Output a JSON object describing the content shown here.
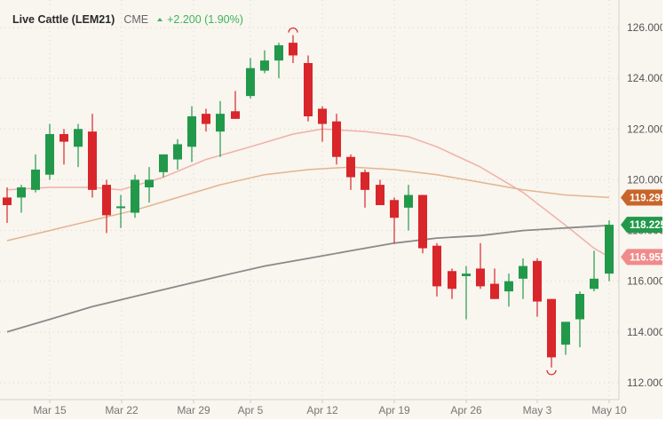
{
  "header": {
    "title": "Live Cattle (LEM21)",
    "exchange": "CME",
    "change_icon": "triangle-up-icon",
    "change": "+2.200 (1.90%)"
  },
  "colors": {
    "background": "#f9f5ef",
    "up": "#22994a",
    "down": "#d8262b",
    "ma_short": "#f0b0a8",
    "ma_mid": "#e2b590",
    "ma_long": "#8a8a8a",
    "tag_mid": "#c8652a",
    "tag_price": "#22994a",
    "tag_short": "#f08b8b",
    "positive_text": "#3cb55a"
  },
  "y_axis": {
    "labels": [
      "126.000",
      "124.000",
      "122.000",
      "120.000",
      "118.000",
      "116.000",
      "114.000",
      "112.000"
    ]
  },
  "x_axis": {
    "labels": [
      "Mar 15",
      "Mar 22",
      "Mar 29",
      "Apr 5",
      "Apr 12",
      "Apr 19",
      "Apr 26",
      "May 3",
      "May 10"
    ]
  },
  "price_tags": [
    {
      "name": "ma-mid-tag",
      "value": "119.299",
      "color": "#c8652a"
    },
    {
      "name": "last-price-tag",
      "value": "118.225",
      "color": "#22994a"
    },
    {
      "name": "ma-short-tag",
      "value": "116.955",
      "color": "#f08b8b"
    }
  ],
  "chart_data": {
    "type": "candlestick",
    "title": "Live Cattle (LEM21)",
    "xlabel": "",
    "ylabel": "",
    "ylim": [
      111.5,
      126.4
    ],
    "grid": true,
    "x_tick_labels": [
      "Mar 15",
      "Mar 22",
      "Mar 29",
      "Apr 5",
      "Apr 12",
      "Apr 19",
      "Apr 26",
      "May 3",
      "May 10"
    ],
    "y_tick_labels": [
      "112.000",
      "114.000",
      "116.000",
      "118.000",
      "120.000",
      "122.000",
      "124.000",
      "126.000"
    ],
    "candles": [
      {
        "x": 8,
        "o": 119.3,
        "h": 119.7,
        "l": 118.3,
        "c": 119.0
      },
      {
        "x": 24,
        "o": 119.3,
        "h": 119.8,
        "l": 118.7,
        "c": 119.7
      },
      {
        "x": 40,
        "o": 119.6,
        "h": 121.0,
        "l": 119.5,
        "c": 120.4
      },
      {
        "x": 56,
        "o": 120.2,
        "h": 122.2,
        "l": 120.0,
        "c": 121.8
      },
      {
        "x": 72,
        "o": 121.8,
        "h": 122.0,
        "l": 120.6,
        "c": 121.5
      },
      {
        "x": 88,
        "o": 121.3,
        "h": 122.2,
        "l": 120.5,
        "c": 122.0
      },
      {
        "x": 104,
        "o": 121.9,
        "h": 122.6,
        "l": 119.3,
        "c": 119.6
      },
      {
        "x": 120,
        "o": 119.8,
        "h": 120.0,
        "l": 117.9,
        "c": 118.6
      },
      {
        "x": 136,
        "o": 118.9,
        "h": 119.4,
        "l": 118.1,
        "c": 118.95
      },
      {
        "x": 152,
        "o": 118.7,
        "h": 120.2,
        "l": 118.5,
        "c": 120.0
      },
      {
        "x": 168,
        "o": 119.7,
        "h": 120.5,
        "l": 119.1,
        "c": 120.0
      },
      {
        "x": 184,
        "o": 120.3,
        "h": 121.0,
        "l": 120.1,
        "c": 121.0
      },
      {
        "x": 200,
        "o": 120.8,
        "h": 121.6,
        "l": 120.4,
        "c": 121.4
      },
      {
        "x": 216,
        "o": 121.3,
        "h": 122.9,
        "l": 120.7,
        "c": 122.5
      },
      {
        "x": 232,
        "o": 122.6,
        "h": 122.8,
        "l": 121.9,
        "c": 122.2
      },
      {
        "x": 248,
        "o": 121.9,
        "h": 123.1,
        "l": 120.9,
        "c": 122.6
      },
      {
        "x": 265,
        "o": 122.7,
        "h": 123.5,
        "l": 122.4,
        "c": 122.4
      },
      {
        "x": 282,
        "o": 123.3,
        "h": 124.8,
        "l": 123.2,
        "c": 124.4
      },
      {
        "x": 298,
        "o": 124.3,
        "h": 125.1,
        "l": 124.2,
        "c": 124.7
      },
      {
        "x": 314,
        "o": 124.7,
        "h": 125.4,
        "l": 124.0,
        "c": 125.3
      },
      {
        "x": 330,
        "o": 125.4,
        "h": 125.7,
        "l": 124.6,
        "c": 124.9
      },
      {
        "x": 347,
        "o": 124.6,
        "h": 124.9,
        "l": 122.3,
        "c": 122.5
      },
      {
        "x": 363,
        "o": 122.8,
        "h": 122.9,
        "l": 121.5,
        "c": 122.2
      },
      {
        "x": 379,
        "o": 122.3,
        "h": 122.6,
        "l": 120.6,
        "c": 120.9
      },
      {
        "x": 395,
        "o": 120.9,
        "h": 121.0,
        "l": 119.6,
        "c": 120.1
      },
      {
        "x": 411,
        "o": 120.3,
        "h": 120.4,
        "l": 118.9,
        "c": 119.6
      },
      {
        "x": 428,
        "o": 119.8,
        "h": 120.0,
        "l": 119.0,
        "c": 119.0
      },
      {
        "x": 444,
        "o": 119.2,
        "h": 119.3,
        "l": 117.5,
        "c": 118.5
      },
      {
        "x": 460,
        "o": 118.9,
        "h": 119.8,
        "l": 118.0,
        "c": 119.4
      },
      {
        "x": 476,
        "o": 119.4,
        "h": 119.4,
        "l": 117.1,
        "c": 117.3
      },
      {
        "x": 492,
        "o": 117.4,
        "h": 117.5,
        "l": 115.4,
        "c": 115.8
      },
      {
        "x": 509,
        "o": 116.4,
        "h": 116.5,
        "l": 115.3,
        "c": 115.7
      },
      {
        "x": 525,
        "o": 116.2,
        "h": 116.6,
        "l": 114.5,
        "c": 116.3
      },
      {
        "x": 541,
        "o": 116.5,
        "h": 117.5,
        "l": 115.7,
        "c": 115.8
      },
      {
        "x": 557,
        "o": 115.9,
        "h": 116.5,
        "l": 115.3,
        "c": 115.3
      },
      {
        "x": 573,
        "o": 115.6,
        "h": 116.3,
        "l": 115.0,
        "c": 116.0
      },
      {
        "x": 589,
        "o": 116.1,
        "h": 116.9,
        "l": 115.3,
        "c": 116.6
      },
      {
        "x": 605,
        "o": 116.8,
        "h": 116.9,
        "l": 114.6,
        "c": 115.2
      },
      {
        "x": 621,
        "o": 115.3,
        "h": 115.3,
        "l": 112.6,
        "c": 113.0
      },
      {
        "x": 637,
        "o": 113.5,
        "h": 114.4,
        "l": 113.1,
        "c": 114.4
      },
      {
        "x": 653,
        "o": 114.5,
        "h": 115.6,
        "l": 113.4,
        "c": 115.5
      },
      {
        "x": 669,
        "o": 115.7,
        "h": 117.2,
        "l": 115.6,
        "c": 116.1
      },
      {
        "x": 686,
        "o": 116.3,
        "h": 118.4,
        "l": 116.0,
        "c": 118.225
      }
    ],
    "series": [
      {
        "name": "MA short",
        "color": "#f0b0a8",
        "last": 116.955,
        "points": [
          [
            8,
            119.6
          ],
          [
            56,
            119.7
          ],
          [
            104,
            119.7
          ],
          [
            136,
            119.6
          ],
          [
            184,
            120.1
          ],
          [
            232,
            120.8
          ],
          [
            282,
            121.3
          ],
          [
            330,
            121.8
          ],
          [
            363,
            122.0
          ],
          [
            411,
            121.9
          ],
          [
            460,
            121.7
          ],
          [
            492,
            121.3
          ],
          [
            541,
            120.5
          ],
          [
            589,
            119.5
          ],
          [
            637,
            118.2
          ],
          [
            669,
            117.3
          ],
          [
            686,
            116.955
          ]
        ]
      },
      {
        "name": "MA mid",
        "color": "#e2b590",
        "last": 119.299,
        "points": [
          [
            8,
            117.6
          ],
          [
            56,
            118.0
          ],
          [
            104,
            118.4
          ],
          [
            152,
            118.8
          ],
          [
            200,
            119.3
          ],
          [
            248,
            119.8
          ],
          [
            298,
            120.2
          ],
          [
            347,
            120.4
          ],
          [
            395,
            120.5
          ],
          [
            444,
            120.4
          ],
          [
            492,
            120.2
          ],
          [
            541,
            119.9
          ],
          [
            589,
            119.6
          ],
          [
            637,
            119.4
          ],
          [
            686,
            119.299
          ]
        ]
      },
      {
        "name": "MA long",
        "color": "#8a8a8a",
        "last": 118.225,
        "points": [
          [
            8,
            114.0
          ],
          [
            56,
            114.5
          ],
          [
            104,
            115.0
          ],
          [
            152,
            115.4
          ],
          [
            200,
            115.8
          ],
          [
            248,
            116.2
          ],
          [
            298,
            116.6
          ],
          [
            347,
            116.9
          ],
          [
            395,
            117.2
          ],
          [
            444,
            117.5
          ],
          [
            492,
            117.7
          ],
          [
            541,
            117.8
          ],
          [
            589,
            118.0
          ],
          [
            637,
            118.1
          ],
          [
            686,
            118.2
          ]
        ]
      }
    ],
    "annotations": [
      {
        "type": "high-marker",
        "x": 330,
        "value": 125.7
      },
      {
        "type": "low-marker",
        "x": 621,
        "value": 112.6
      }
    ]
  }
}
